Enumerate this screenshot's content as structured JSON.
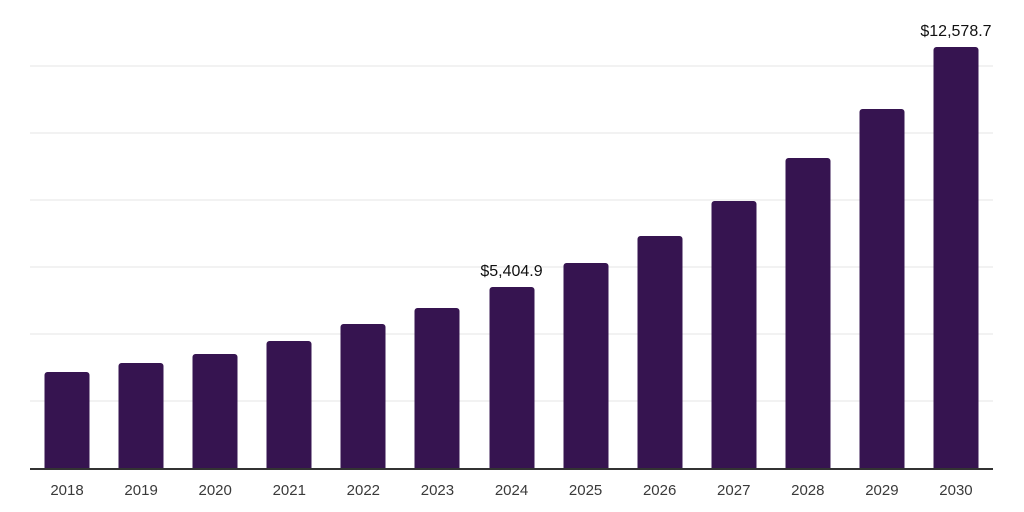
{
  "chart_data": {
    "type": "bar",
    "title": "",
    "xlabel": "",
    "ylabel": "",
    "categories": [
      "2018",
      "2019",
      "2020",
      "2021",
      "2022",
      "2023",
      "2024",
      "2025",
      "2026",
      "2027",
      "2028",
      "2029",
      "2030"
    ],
    "values": [
      2870,
      3140,
      3400,
      3790,
      4300,
      4780,
      5404.9,
      6120,
      6930,
      7970,
      9260,
      10720,
      12578.7
    ],
    "data_labels": [
      "",
      "",
      "",
      "",
      "",
      "",
      "$5,404.9",
      "",
      "",
      "",
      "",
      "",
      "$12,578.7"
    ],
    "ylim": [
      0,
      14000
    ],
    "grid": true,
    "grid_step": 2000,
    "y_tick_labels_visible": false,
    "legend_position": "none",
    "colors": {
      "bar": "#361450",
      "gridline": "#f2f2f2",
      "axis_line": "#333333",
      "x_tick_label": "#3a3a3a",
      "data_label": "#111111",
      "background": "#ffffff"
    }
  }
}
